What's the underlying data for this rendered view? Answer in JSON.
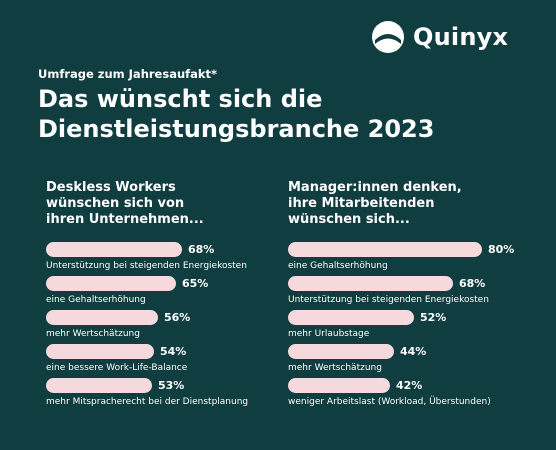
{
  "brand": {
    "name": "Quinyx"
  },
  "header": {
    "kicker": "Umfrage zum Jahresaufakt*",
    "title_line1": "Das wünscht sich die",
    "title_line2": "Dienstleistungsbranche 2023"
  },
  "colors": {
    "background": "#0f3d40",
    "bar": "#f6d9dd",
    "text": "#ffffff"
  },
  "chart_data": [
    {
      "type": "bar",
      "orientation": "horizontal",
      "title_lines": [
        "Deskless Workers",
        "wünschen sich von",
        "ihren Unternehmen..."
      ],
      "categories": [
        "Unterstützung bei steigenden Energiekosten",
        "eine Gehaltserhöhung",
        "mehr Wertschätzung",
        "eine bessere Work-Life-Balance",
        "mehr Mitspracherecht bei der Dienstplanung"
      ],
      "values": [
        68,
        65,
        56,
        54,
        53
      ],
      "value_labels": [
        "68%",
        "65%",
        "56%",
        "54%",
        "53%"
      ],
      "xlim": [
        0,
        100
      ]
    },
    {
      "type": "bar",
      "orientation": "horizontal",
      "title_lines": [
        "Manager:innen denken,",
        "ihre Mitarbeitenden",
        "wünschen sich..."
      ],
      "categories": [
        "eine Gehaltserhöhung",
        "Unterstützung bei steigenden Energiekosten",
        "mehr Urlaubstage",
        "mehr Wertschätzung",
        "weniger Arbeitslast (Workload, Überstunden)"
      ],
      "values": [
        80,
        68,
        52,
        44,
        42
      ],
      "value_labels": [
        "80%",
        "68%",
        "52%",
        "44%",
        "42%"
      ],
      "xlim": [
        0,
        100
      ]
    }
  ]
}
